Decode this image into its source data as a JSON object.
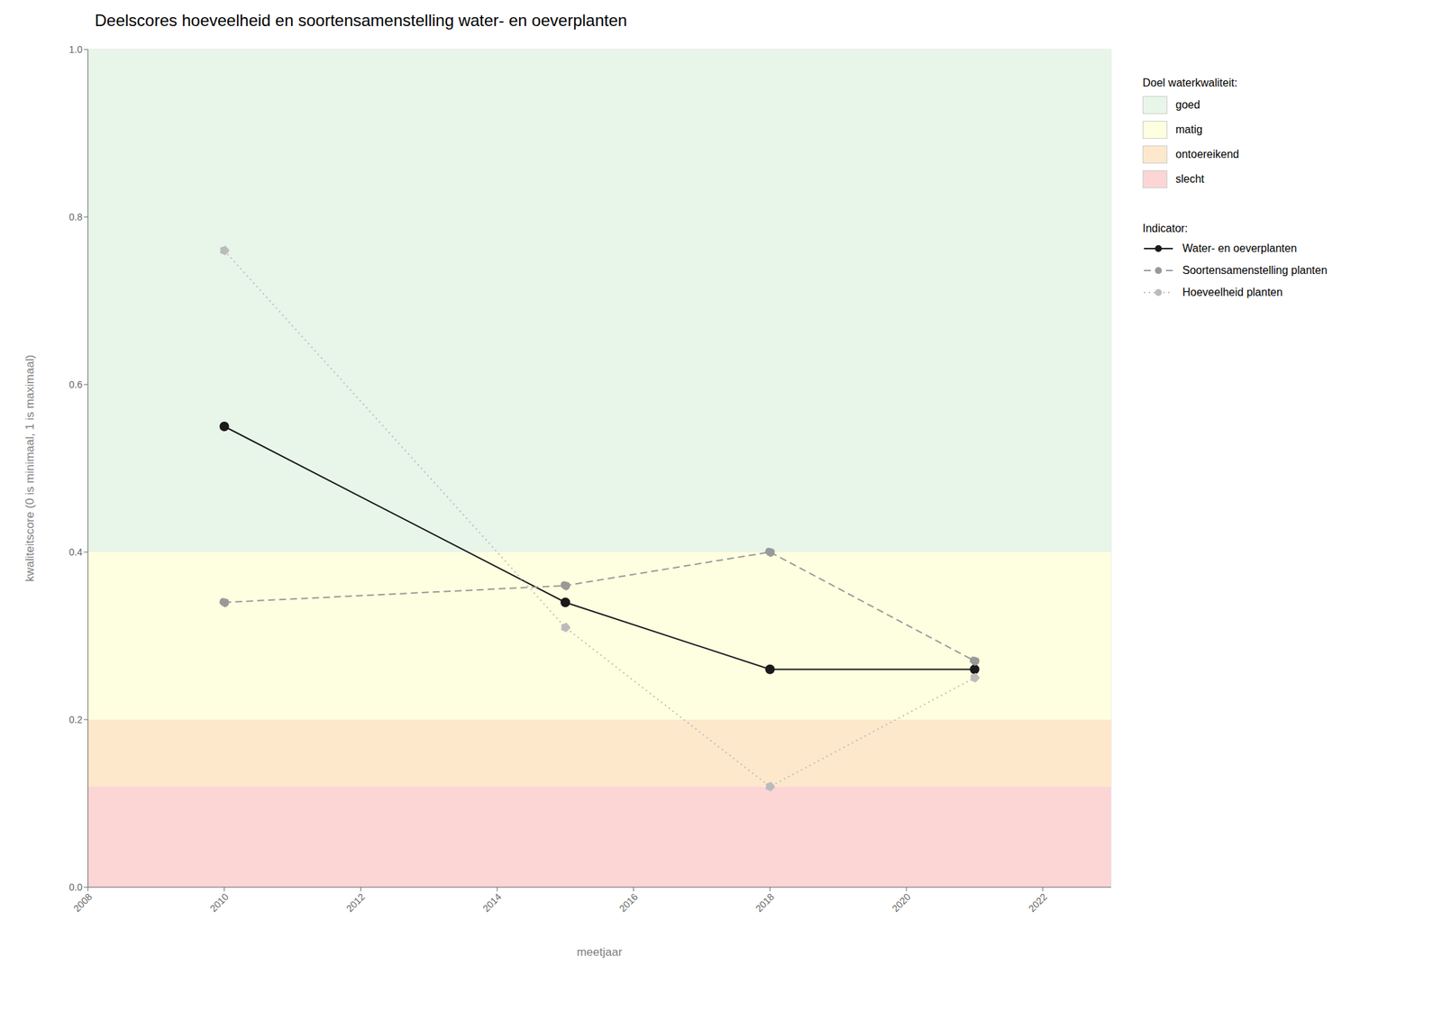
{
  "chart_data": {
    "type": "line",
    "title": "Deelscores hoeveelheid en soortensamenstelling water- en oeverplanten",
    "x_label": "meetjaar",
    "y_label": "kwaliteitscore (0 is minimaal, 1 is maximaal)",
    "x": [
      2010,
      2015,
      2018,
      2021
    ],
    "series": [
      {
        "name": "Water- en oeverplanten",
        "color": "#1a1a1a",
        "line_style": "solid",
        "marker": "circle",
        "values": [
          0.55,
          0.34,
          0.26,
          0.26
        ]
      },
      {
        "name": "Soortensamenstelling planten",
        "color": "#999999",
        "line_style": "dashed",
        "marker": "circle",
        "values": [
          0.34,
          0.36,
          0.4,
          0.27
        ]
      },
      {
        "name": "Hoeveelheid planten",
        "color": "#bbbbbb",
        "line_style": "dotted",
        "marker": "circle",
        "values": [
          0.76,
          0.31,
          0.12,
          0.25
        ]
      }
    ],
    "xlim": [
      2008,
      2023
    ],
    "xticks": [
      2008,
      2010,
      2012,
      2014,
      2016,
      2018,
      2020,
      2022
    ],
    "ylim": [
      0.0,
      1.0
    ],
    "yticks": [
      {
        "value": 0,
        "label": "0.0"
      },
      0.2,
      0.4,
      0.6,
      0.8,
      {
        "value": 1,
        "label": "1.0"
      }
    ],
    "grid": true,
    "legend": "right",
    "legend_title": "Indicator:",
    "zones_title": "Doel waterkwaliteit:",
    "zones": [
      {
        "label": "goed",
        "ymin": 0.4,
        "ymax": 1.0,
        "color": "#e8f5e9"
      },
      {
        "label": "matig",
        "ymin": 0.2,
        "ymax": 0.4,
        "color": "#fefee0"
      },
      {
        "label": "ontoereikend",
        "ymin": 0.12,
        "ymax": 0.2,
        "color": "#fde8cc"
      },
      {
        "label": "slecht",
        "ymin": 0.0,
        "ymax": 0.12,
        "color": "#fcd5d5"
      }
    ]
  }
}
